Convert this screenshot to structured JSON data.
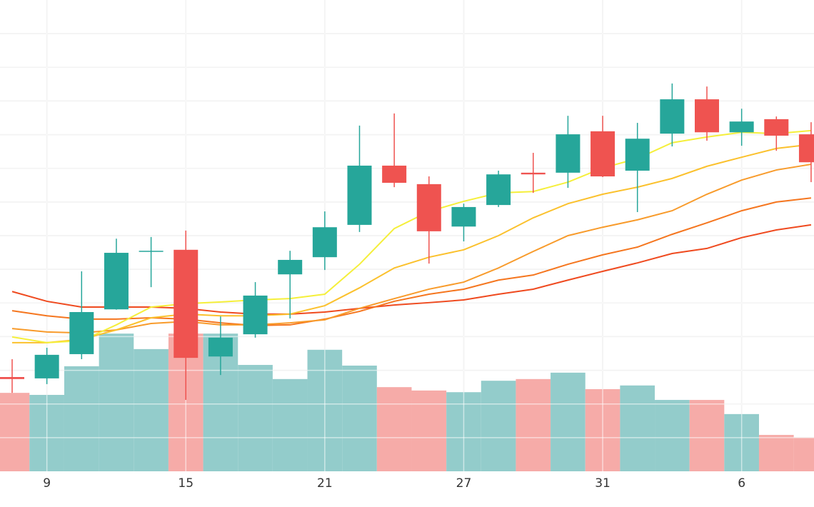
{
  "chart_data": {
    "type": "candlestick",
    "categories": [
      null,
      "9",
      null,
      null,
      null,
      "15",
      null,
      null,
      null,
      "21",
      null,
      null,
      null,
      "27",
      null,
      null,
      null,
      "31",
      null,
      null,
      null,
      "6",
      null,
      null
    ],
    "open": [
      2.8,
      2.76,
      3.48,
      4.81,
      6.53,
      6.58,
      3.41,
      4.07,
      5.85,
      6.36,
      7.32,
      9.08,
      8.53,
      7.27,
      7.91,
      8.87,
      8.87,
      10.1,
      8.93,
      10.03,
      11.05,
      10.07,
      10.46,
      10.01
    ],
    "high": [
      3.33,
      3.67,
      5.94,
      6.91,
      6.96,
      7.15,
      4.6,
      5.62,
      6.55,
      7.72,
      10.27,
      10.63,
      8.76,
      7.95,
      8.93,
      9.46,
      10.56,
      10.56,
      10.35,
      11.52,
      11.43,
      10.77,
      10.54,
      10.37
    ],
    "low": [
      2.33,
      2.59,
      3.33,
      4.8,
      5.47,
      2.12,
      2.86,
      3.97,
      4.54,
      5.98,
      7.11,
      8.44,
      6.17,
      6.83,
      7.85,
      8.27,
      8.42,
      8.74,
      7.7,
      9.65,
      9.82,
      9.67,
      9.52,
      8.59
    ],
    "close": [
      2.74,
      3.46,
      4.73,
      6.49,
      6.55,
      3.37,
      3.97,
      5.22,
      6.28,
      7.25,
      9.08,
      8.57,
      7.13,
      7.85,
      8.82,
      8.82,
      10.01,
      8.76,
      9.88,
      11.05,
      10.07,
      10.39,
      9.97,
      9.18
    ],
    "volume": [
      2.33,
      2.27,
      3.12,
      4.09,
      3.63,
      4.09,
      4.09,
      3.16,
      2.74,
      3.61,
      3.14,
      2.5,
      2.4,
      2.35,
      2.69,
      2.74,
      2.93,
      2.44,
      2.55,
      2.12,
      2.12,
      1.7,
      1.08,
      1.0
    ],
    "up_color": "#26a69a",
    "down_color": "#ef5350",
    "volume_up_color": "#93cccb",
    "volume_down_color": "#f6aba8",
    "series": [
      {
        "color": "#ef4a1f",
        "values": [
          5.34,
          5.05,
          4.88,
          4.88,
          4.88,
          4.84,
          4.73,
          4.67,
          4.67,
          4.73,
          4.84,
          4.94,
          5.01,
          5.09,
          5.26,
          5.41,
          5.68,
          5.94,
          6.19,
          6.47,
          6.62,
          6.94,
          7.17,
          7.32
        ]
      },
      {
        "color": "#f5761f",
        "values": [
          4.77,
          4.62,
          4.52,
          4.52,
          4.56,
          4.52,
          4.41,
          4.33,
          4.35,
          4.52,
          4.75,
          5.05,
          5.26,
          5.41,
          5.68,
          5.83,
          6.15,
          6.43,
          6.66,
          7.04,
          7.38,
          7.74,
          8.0,
          8.12
        ]
      },
      {
        "color": "#f89b2b",
        "values": [
          4.24,
          4.14,
          4.11,
          4.2,
          4.39,
          4.45,
          4.35,
          4.35,
          4.41,
          4.5,
          4.84,
          5.13,
          5.41,
          5.62,
          6.04,
          6.53,
          7.0,
          7.25,
          7.47,
          7.74,
          8.23,
          8.65,
          8.95,
          9.12
        ]
      },
      {
        "color": "#fbc12d",
        "values": [
          3.82,
          3.82,
          3.92,
          4.2,
          4.56,
          4.67,
          4.62,
          4.62,
          4.67,
          4.92,
          5.45,
          6.04,
          6.36,
          6.58,
          7.0,
          7.53,
          7.95,
          8.23,
          8.44,
          8.7,
          9.06,
          9.33,
          9.59,
          9.71
        ]
      },
      {
        "color": "#f5ef3b",
        "values": [
          3.99,
          3.82,
          3.88,
          4.35,
          4.88,
          4.98,
          5.03,
          5.09,
          5.13,
          5.26,
          6.15,
          7.21,
          7.72,
          8.02,
          8.27,
          8.31,
          8.59,
          9.01,
          9.29,
          9.76,
          9.93,
          10.07,
          10.03,
          10.12
        ]
      }
    ],
    "ylim": [
      0,
      14
    ],
    "yticks": [
      1,
      2,
      3,
      4,
      5,
      6,
      7,
      8,
      9,
      10,
      11,
      12,
      13
    ],
    "y2lim": [
      0,
      14
    ],
    "grid": true
  }
}
